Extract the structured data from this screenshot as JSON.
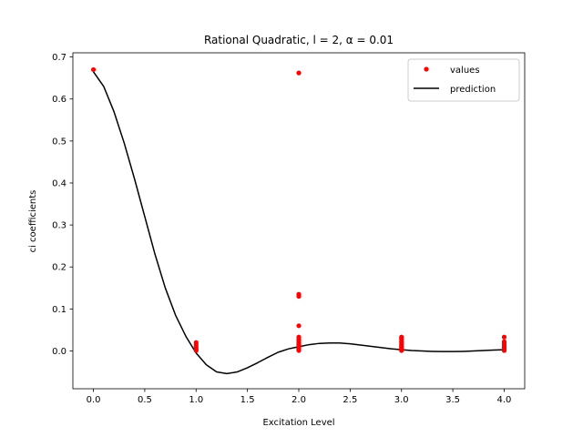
{
  "chart_data": {
    "type": "scatter",
    "title": "Rational Quadratic, l = 2, α = 0.01",
    "xlabel": "Excitation Level",
    "ylabel": "ci coefficients",
    "xlim": [
      -0.2,
      4.2
    ],
    "ylim": [
      -0.09,
      0.71
    ],
    "xticks": [
      0.0,
      0.5,
      1.0,
      1.5,
      2.0,
      2.5,
      3.0,
      3.5,
      4.0
    ],
    "xtick_labels": [
      "0.0",
      "0.5",
      "1.0",
      "1.5",
      "2.0",
      "2.5",
      "3.0",
      "3.5",
      "4.0"
    ],
    "yticks": [
      0.0,
      0.1,
      0.2,
      0.3,
      0.4,
      0.5,
      0.6,
      0.7
    ],
    "ytick_labels": [
      "0.0",
      "0.1",
      "0.2",
      "0.3",
      "0.4",
      "0.5",
      "0.6",
      "0.7"
    ],
    "grid": false,
    "legend": {
      "position": "top-right",
      "entries": [
        "values",
        "prediction"
      ]
    },
    "series": [
      {
        "name": "values",
        "kind": "points",
        "color": "#ff0000",
        "points": [
          [
            0,
            0.67
          ],
          [
            1,
            0.02
          ],
          [
            1,
            0.015
          ],
          [
            1,
            0.01
          ],
          [
            1,
            0.006
          ],
          [
            1,
            0.003
          ],
          [
            1,
            0.001
          ],
          [
            2,
            0.662
          ],
          [
            2,
            0.135
          ],
          [
            2,
            0.13
          ],
          [
            2,
            0.06
          ],
          [
            2,
            0.033
          ],
          [
            2,
            0.028
          ],
          [
            2,
            0.024
          ],
          [
            2,
            0.02
          ],
          [
            2,
            0.016
          ],
          [
            2,
            0.013
          ],
          [
            2,
            0.01
          ],
          [
            2,
            0.007
          ],
          [
            2,
            0.005
          ],
          [
            2,
            0.003
          ],
          [
            2,
            0.001
          ],
          [
            3,
            0.033
          ],
          [
            3,
            0.028
          ],
          [
            3,
            0.022
          ],
          [
            3,
            0.017
          ],
          [
            3,
            0.012
          ],
          [
            3,
            0.008
          ],
          [
            3,
            0.005
          ],
          [
            3,
            0.003
          ],
          [
            3,
            0.001
          ],
          [
            4,
            0.033
          ],
          [
            4,
            0.022
          ],
          [
            4,
            0.018
          ],
          [
            4,
            0.014
          ],
          [
            4,
            0.01
          ],
          [
            4,
            0.007
          ],
          [
            4,
            0.004
          ],
          [
            4,
            0.002
          ],
          [
            4,
            0.001
          ]
        ]
      },
      {
        "name": "prediction",
        "kind": "line",
        "color": "#000000",
        "points": [
          [
            0.0,
            0.665
          ],
          [
            0.1,
            0.63
          ],
          [
            0.2,
            0.57
          ],
          [
            0.3,
            0.495
          ],
          [
            0.4,
            0.41
          ],
          [
            0.5,
            0.32
          ],
          [
            0.6,
            0.23
          ],
          [
            0.7,
            0.15
          ],
          [
            0.8,
            0.085
          ],
          [
            0.9,
            0.035
          ],
          [
            1.0,
            -0.005
          ],
          [
            1.1,
            -0.033
          ],
          [
            1.2,
            -0.05
          ],
          [
            1.3,
            -0.054
          ],
          [
            1.4,
            -0.05
          ],
          [
            1.5,
            -0.04
          ],
          [
            1.6,
            -0.028
          ],
          [
            1.7,
            -0.015
          ],
          [
            1.8,
            -0.003
          ],
          [
            1.9,
            0.005
          ],
          [
            2.0,
            0.01
          ],
          [
            2.1,
            0.015
          ],
          [
            2.2,
            0.018
          ],
          [
            2.3,
            0.019
          ],
          [
            2.4,
            0.019
          ],
          [
            2.5,
            0.017
          ],
          [
            2.6,
            0.014
          ],
          [
            2.7,
            0.011
          ],
          [
            2.8,
            0.008
          ],
          [
            2.9,
            0.005
          ],
          [
            3.0,
            0.003
          ],
          [
            3.1,
            0.001
          ],
          [
            3.2,
            0.0
          ],
          [
            3.3,
            -0.001
          ],
          [
            3.4,
            -0.0015
          ],
          [
            3.5,
            -0.0015
          ],
          [
            3.6,
            -0.001
          ],
          [
            3.7,
            0.0
          ],
          [
            3.8,
            0.001
          ],
          [
            3.9,
            0.002
          ],
          [
            4.0,
            0.003
          ]
        ]
      }
    ]
  }
}
